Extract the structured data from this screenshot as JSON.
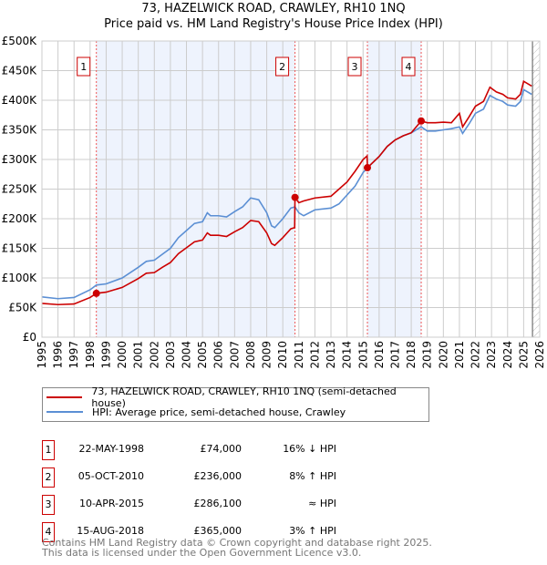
{
  "chart_data": {
    "type": "line",
    "title": "73, HAZELWICK ROAD, CRAWLEY, RH10 1NQ",
    "subtitle": "Price paid vs. HM Land Registry's House Price Index (HPI)",
    "xlim": [
      1995,
      2026
    ],
    "ylim": [
      0,
      500000
    ],
    "x_ticks": [
      "1995",
      "1996",
      "1997",
      "1998",
      "1999",
      "2000",
      "2001",
      "2002",
      "2003",
      "2004",
      "2005",
      "2006",
      "2007",
      "2008",
      "2009",
      "2010",
      "2011",
      "2012",
      "2013",
      "2014",
      "2015",
      "2016",
      "2017",
      "2018",
      "2019",
      "2020",
      "2021",
      "2022",
      "2023",
      "2024",
      "2025",
      "2026"
    ],
    "y_ticks": [
      {
        "v": 0,
        "l": "£0"
      },
      {
        "v": 50000,
        "l": "£50K"
      },
      {
        "v": 100000,
        "l": "£100K"
      },
      {
        "v": 150000,
        "l": "£150K"
      },
      {
        "v": 200000,
        "l": "£200K"
      },
      {
        "v": 250000,
        "l": "£250K"
      },
      {
        "v": 300000,
        "l": "£300K"
      },
      {
        "v": 350000,
        "l": "£350K"
      },
      {
        "v": 400000,
        "l": "£400K"
      },
      {
        "v": 450000,
        "l": "£450K"
      },
      {
        "v": 500000,
        "l": "£500K"
      }
    ],
    "grid": true,
    "series": [
      {
        "name": "73, HAZELWICK ROAD, CRAWLEY, RH10 1NQ (semi-detached house)",
        "color": "#cc0000",
        "points_k": [
          [
            1995,
            57
          ],
          [
            1996,
            55
          ],
          [
            1997,
            56
          ],
          [
            1998,
            67
          ],
          [
            1998.39,
            74
          ],
          [
            1999,
            76
          ],
          [
            2000,
            84
          ],
          [
            2001,
            99
          ],
          [
            2001.5,
            108
          ],
          [
            2002,
            109
          ],
          [
            2002.5,
            118
          ],
          [
            2003,
            126
          ],
          [
            2003.5,
            141
          ],
          [
            2004,
            151
          ],
          [
            2004.5,
            161
          ],
          [
            2005,
            164
          ],
          [
            2005.3,
            176
          ],
          [
            2005.5,
            172
          ],
          [
            2006,
            172
          ],
          [
            2006.5,
            170
          ],
          [
            2007,
            178
          ],
          [
            2007.5,
            185
          ],
          [
            2008,
            197
          ],
          [
            2008.5,
            195
          ],
          [
            2009,
            176
          ],
          [
            2009.3,
            158
          ],
          [
            2009.5,
            155
          ],
          [
            2010,
            168
          ],
          [
            2010.5,
            183
          ],
          [
            2010.74,
            185
          ],
          [
            2010.76,
            236
          ],
          [
            2011,
            227
          ],
          [
            2011.3,
            230
          ],
          [
            2012,
            235
          ],
          [
            2013,
            238
          ],
          [
            2013.5,
            250
          ],
          [
            2014,
            262
          ],
          [
            2014.5,
            280
          ],
          [
            2015,
            300
          ],
          [
            2015.25,
            306
          ],
          [
            2015.27,
            286
          ],
          [
            2016,
            305
          ],
          [
            2016.5,
            322
          ],
          [
            2017,
            333
          ],
          [
            2017.5,
            340
          ],
          [
            2018,
            345
          ],
          [
            2018.62,
            365
          ],
          [
            2019,
            362
          ],
          [
            2019.5,
            362
          ],
          [
            2020,
            363
          ],
          [
            2020.5,
            362
          ],
          [
            2021,
            378
          ],
          [
            2021.2,
            355
          ],
          [
            2021.6,
            372
          ],
          [
            2022,
            390
          ],
          [
            2022.5,
            398
          ],
          [
            2022.9,
            422
          ],
          [
            2023.3,
            414
          ],
          [
            2023.7,
            410
          ],
          [
            2024,
            404
          ],
          [
            2024.5,
            402
          ],
          [
            2024.8,
            410
          ],
          [
            2025,
            432
          ],
          [
            2025.5,
            424
          ]
        ]
      },
      {
        "name": "HPI: Average price, semi-detached house, Crawley",
        "color": "#5b8fd4",
        "points_k": [
          [
            1995,
            68
          ],
          [
            1996,
            65
          ],
          [
            1997,
            67
          ],
          [
            1998,
            80
          ],
          [
            1998.39,
            88
          ],
          [
            1999,
            90
          ],
          [
            2000,
            100
          ],
          [
            2001,
            118
          ],
          [
            2001.5,
            128
          ],
          [
            2002,
            130
          ],
          [
            2002.5,
            140
          ],
          [
            2003,
            150
          ],
          [
            2003.5,
            168
          ],
          [
            2004,
            180
          ],
          [
            2004.5,
            192
          ],
          [
            2005,
            195
          ],
          [
            2005.3,
            210
          ],
          [
            2005.5,
            205
          ],
          [
            2006,
            205
          ],
          [
            2006.5,
            203
          ],
          [
            2007,
            212
          ],
          [
            2007.5,
            220
          ],
          [
            2008,
            235
          ],
          [
            2008.5,
            232
          ],
          [
            2009,
            210
          ],
          [
            2009.3,
            188
          ],
          [
            2009.5,
            185
          ],
          [
            2010,
            200
          ],
          [
            2010.5,
            218
          ],
          [
            2010.76,
            220
          ],
          [
            2011,
            210
          ],
          [
            2011.3,
            205
          ],
          [
            2012,
            215
          ],
          [
            2013,
            218
          ],
          [
            2013.5,
            225
          ],
          [
            2014,
            240
          ],
          [
            2014.5,
            255
          ],
          [
            2015,
            278
          ],
          [
            2015.27,
            286
          ],
          [
            2016,
            305
          ],
          [
            2016.5,
            322
          ],
          [
            2017,
            333
          ],
          [
            2017.5,
            340
          ],
          [
            2018,
            345
          ],
          [
            2018.62,
            355
          ],
          [
            2019,
            348
          ],
          [
            2019.5,
            348
          ],
          [
            2020,
            350
          ],
          [
            2020.5,
            352
          ],
          [
            2021,
            355
          ],
          [
            2021.2,
            344
          ],
          [
            2021.6,
            360
          ],
          [
            2022,
            378
          ],
          [
            2022.5,
            385
          ],
          [
            2022.9,
            408
          ],
          [
            2023.3,
            402
          ],
          [
            2023.7,
            398
          ],
          [
            2024,
            392
          ],
          [
            2024.5,
            390
          ],
          [
            2024.8,
            398
          ],
          [
            2025,
            418
          ],
          [
            2025.5,
            410
          ]
        ]
      }
    ],
    "sales": [
      {
        "n": "1",
        "x": 1998.39,
        "price": 74000,
        "date": "22-MAY-1998",
        "price_label": "£74,000",
        "hpi": "16% ↓ HPI"
      },
      {
        "n": "2",
        "x": 2010.76,
        "price": 236000,
        "date": "05-OCT-2010",
        "price_label": "£236,000",
        "hpi": "8% ↑ HPI"
      },
      {
        "n": "3",
        "x": 2015.27,
        "price": 286100,
        "date": "10-APR-2015",
        "price_label": "£286,100",
        "hpi": "≈ HPI"
      },
      {
        "n": "4",
        "x": 2018.62,
        "price": 365000,
        "date": "15-AUG-2018",
        "price_label": "£365,000",
        "hpi": "3% ↑ HPI"
      }
    ],
    "shaded_ranges": [
      [
        1998.39,
        2010.76
      ],
      [
        2015.27,
        2018.62
      ]
    ],
    "hatched_from": 2025.55,
    "legend_placement": "below"
  },
  "legend": {
    "red": "73, HAZELWICK ROAD, CRAWLEY, RH10 1NQ (semi-detached house)",
    "blue": "HPI: Average price, semi-detached house, Crawley"
  },
  "footer": {
    "line1": "Contains HM Land Registry data © Crown copyright and database right 2025.",
    "line2": "This data is licensed under the Open Government Licence v3.0."
  }
}
